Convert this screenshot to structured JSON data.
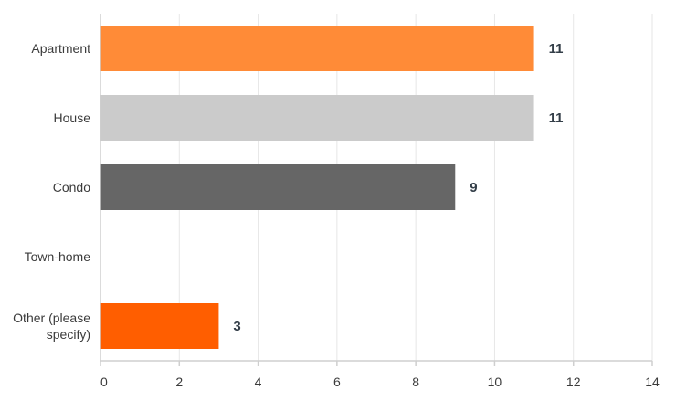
{
  "chart_data": {
    "type": "bar",
    "orientation": "horizontal",
    "categories": [
      "Apartment",
      "House",
      "Condo",
      "Town-home",
      "Other (please specify)"
    ],
    "category_lines": [
      [
        "Apartment"
      ],
      [
        "House"
      ],
      [
        "Condo"
      ],
      [
        "Town-home"
      ],
      [
        "Other (please",
        "specify)"
      ]
    ],
    "values": [
      11,
      11,
      9,
      0,
      3
    ],
    "data_labels": [
      "11",
      "11",
      "9",
      "",
      "3"
    ],
    "colors": [
      "#ff8b37",
      "#cbcbcb",
      "#666666",
      "#ffffff",
      "#ff5e00"
    ],
    "xlim": [
      0,
      14
    ],
    "xticks": [
      0,
      2,
      4,
      6,
      8,
      10,
      12,
      14
    ],
    "xtick_labels": [
      "0",
      "2",
      "4",
      "6",
      "8",
      "10",
      "12",
      "14"
    ],
    "grid": true,
    "title": "",
    "xlabel": "",
    "ylabel": ""
  }
}
